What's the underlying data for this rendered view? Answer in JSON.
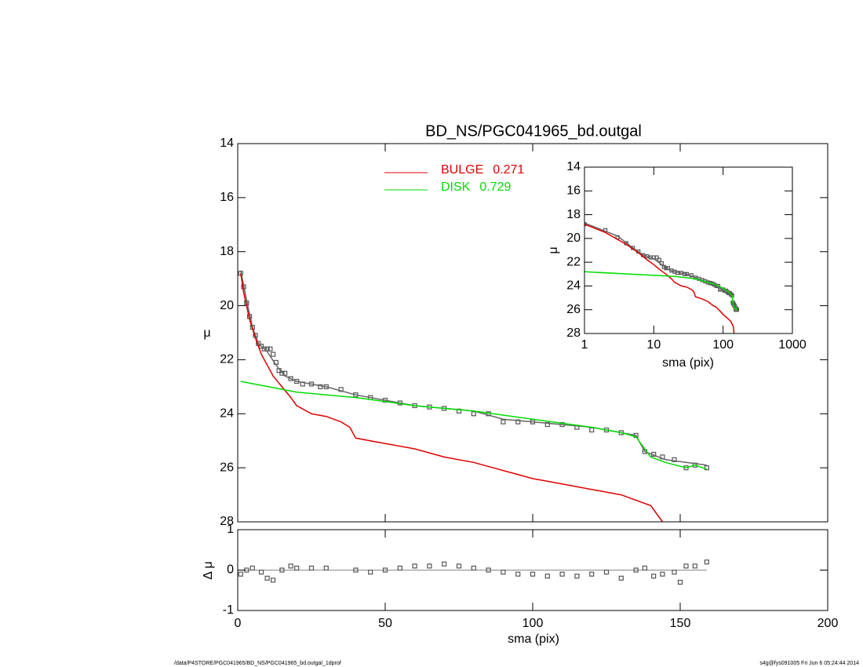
{
  "chart_data": [
    {
      "type": "line",
      "title": "BD_NS/PGC041965_bd.outgal",
      "ylabel": "μ",
      "xlim": [
        0,
        200
      ],
      "ylim": [
        14,
        28
      ],
      "y_inverted": true,
      "yticks": [
        14,
        16,
        18,
        20,
        22,
        24,
        26,
        28
      ],
      "series": [
        {
          "style": "squares",
          "color": "#555555",
          "x": [
            1,
            2,
            3,
            4,
            5,
            6,
            7,
            8,
            9,
            10,
            11,
            12,
            13,
            14,
            15,
            16,
            18,
            20,
            22,
            25,
            28,
            30,
            35,
            40,
            45,
            50,
            55,
            60,
            65,
            70,
            75,
            80,
            85,
            90,
            95,
            100,
            105,
            110,
            115,
            120,
            125,
            130,
            135,
            138,
            141,
            144,
            148,
            152,
            155,
            159
          ],
          "values": [
            18.8,
            19.3,
            19.9,
            20.4,
            20.8,
            21.1,
            21.4,
            21.5,
            21.6,
            21.6,
            21.6,
            21.8,
            22.1,
            22.4,
            22.5,
            22.5,
            22.7,
            22.8,
            22.9,
            22.9,
            23.0,
            23.0,
            23.1,
            23.3,
            23.4,
            23.5,
            23.6,
            23.7,
            23.75,
            23.8,
            23.9,
            24.0,
            24.0,
            24.3,
            24.3,
            24.3,
            24.4,
            24.4,
            24.5,
            24.6,
            24.6,
            24.7,
            24.8,
            25.4,
            25.5,
            25.6,
            25.7,
            26.0,
            25.9,
            26.0
          ]
        },
        {
          "style": "line",
          "color": "#666666",
          "x": [
            1,
            3,
            5,
            7,
            10,
            13,
            16,
            20,
            30,
            40,
            60,
            80,
            90,
            100,
            120,
            135,
            138,
            145,
            152,
            159
          ],
          "values": [
            18.7,
            19.8,
            20.8,
            21.4,
            21.7,
            22.2,
            22.6,
            22.8,
            23.0,
            23.3,
            23.7,
            23.9,
            24.2,
            24.3,
            24.5,
            24.8,
            25.4,
            25.7,
            25.8,
            25.9
          ]
        },
        {
          "name": "BULGE",
          "fraction": 0.271,
          "style": "line",
          "color": "#e00000",
          "x": [
            1,
            2,
            4,
            6,
            8,
            10,
            12,
            15,
            18,
            20,
            25,
            30,
            35,
            38,
            40,
            50,
            60,
            70,
            80,
            90,
            100,
            110,
            120,
            130,
            140,
            144
          ],
          "values": [
            18.8,
            19.5,
            20.5,
            21.2,
            21.8,
            22.2,
            22.6,
            23.0,
            23.4,
            23.7,
            24.0,
            24.1,
            24.3,
            24.5,
            24.9,
            25.1,
            25.3,
            25.6,
            25.8,
            26.1,
            26.4,
            26.6,
            26.8,
            27.0,
            27.4,
            28.0
          ]
        },
        {
          "name": "DISK",
          "fraction": 0.729,
          "style": "line",
          "color": "#00dd00",
          "x": [
            1,
            20,
            40,
            60,
            80,
            100,
            120,
            130,
            135,
            140,
            145,
            152,
            155,
            159
          ],
          "values": [
            22.8,
            23.2,
            23.4,
            23.7,
            23.9,
            24.2,
            24.5,
            24.7,
            24.85,
            25.6,
            25.8,
            26.0,
            25.9,
            26.05
          ]
        }
      ]
    },
    {
      "type": "scatter",
      "ylabel": "Δ μ",
      "xlabel": "sma (pix)",
      "xlim": [
        0,
        200
      ],
      "ylim": [
        -1,
        1
      ],
      "xticks": [
        0,
        50,
        100,
        150,
        200
      ],
      "yticks": [
        -1,
        0,
        1
      ],
      "color": "#555555",
      "x": [
        1,
        3,
        5,
        8,
        10,
        12,
        15,
        18,
        20,
        25,
        30,
        40,
        45,
        50,
        55,
        60,
        65,
        70,
        75,
        80,
        85,
        90,
        95,
        100,
        105,
        110,
        115,
        120,
        125,
        130,
        135,
        138,
        141,
        144,
        148,
        150,
        152,
        155,
        159
      ],
      "values": [
        -0.1,
        0,
        0.05,
        -0.05,
        -0.2,
        -0.25,
        0,
        0.1,
        0.05,
        0.05,
        0.05,
        0,
        -0.05,
        0,
        0.05,
        0.1,
        0.1,
        0.15,
        0.1,
        0.05,
        0,
        -0.05,
        -0.1,
        -0.1,
        -0.15,
        -0.1,
        -0.15,
        -0.1,
        -0.05,
        -0.2,
        0,
        0.05,
        -0.15,
        -0.1,
        -0.05,
        -0.3,
        0.1,
        0.1,
        0.2
      ]
    },
    {
      "type": "inset",
      "xlabel": "sma (pix)",
      "ylabel": "μ",
      "log_x": true,
      "xlim": [
        1,
        1000
      ],
      "ylim": [
        14,
        28
      ],
      "y_inverted": true,
      "xticks": [
        1,
        10,
        100,
        1000
      ],
      "yticks": [
        14,
        16,
        18,
        20,
        22,
        24,
        26,
        28
      ]
    }
  ],
  "footer": {
    "left": "/data/P4STORE/PGC041965/BD_NS/PGC041965_bd.outgal_1dprof",
    "right": "s4g@fys091005  Fri Jun  6 05:24:44 2014"
  }
}
